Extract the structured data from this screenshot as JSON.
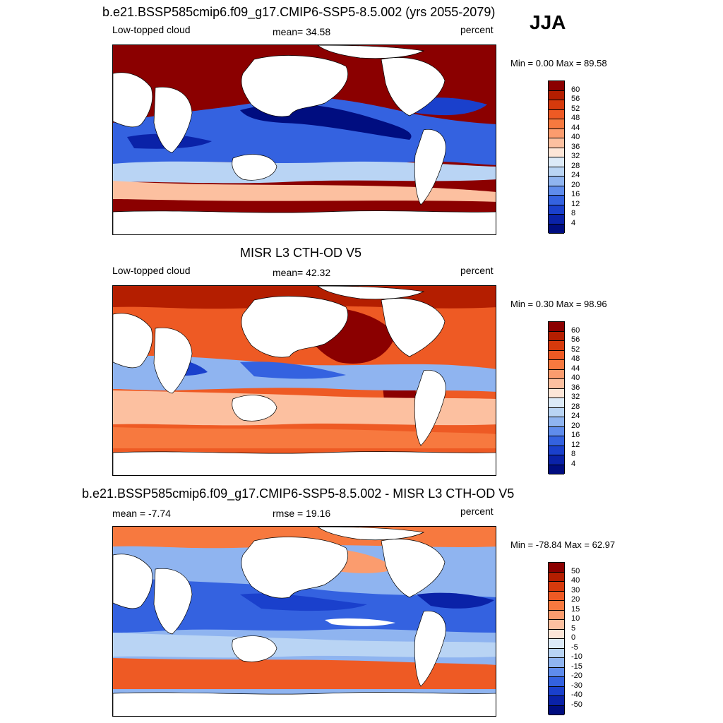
{
  "season": "JJA",
  "panels": [
    {
      "title": "b.e21.BSSP585cmip6.f09_g17.CMIP6-SSP5-8.5.002 (yrs 2055-2079)",
      "left_text": "Low-topped cloud",
      "center_text": "mean=  34.58",
      "right_text": "percent",
      "minmax": "Min =   0.00 Max =  89.58",
      "legend_labels": [
        "60",
        "56",
        "52",
        "48",
        "44",
        "40",
        "36",
        "32",
        "28",
        "24",
        "20",
        "16",
        "12",
        "8",
        "4"
      ],
      "legend_colors": [
        "#8b0000",
        "#b41e00",
        "#d63a0c",
        "#ee5a24",
        "#f7793f",
        "#fb9c6e",
        "#fcc0a0",
        "#fde6d8",
        "#dceaf8",
        "#b9d4f4",
        "#8fb4f0",
        "#5f8cec",
        "#3462e0",
        "#1a40cc",
        "#0a22a8",
        "#000d80"
      ]
    },
    {
      "title": "MISR L3 CTH-OD V5",
      "left_text": "Low-topped cloud",
      "center_text": "mean=  42.32",
      "right_text": "percent",
      "minmax": "Min =   0.30 Max =  98.96",
      "legend_labels": [
        "60",
        "56",
        "52",
        "48",
        "44",
        "40",
        "36",
        "32",
        "28",
        "24",
        "20",
        "16",
        "12",
        "8",
        "4"
      ],
      "legend_colors": [
        "#8b0000",
        "#b41e00",
        "#d63a0c",
        "#ee5a24",
        "#f7793f",
        "#fb9c6e",
        "#fcc0a0",
        "#fde6d8",
        "#dceaf8",
        "#b9d4f4",
        "#8fb4f0",
        "#5f8cec",
        "#3462e0",
        "#1a40cc",
        "#0a22a8",
        "#000d80"
      ]
    },
    {
      "title": "b.e21.BSSP585cmip6.f09_g17.CMIP6-SSP5-8.5.002 - MISR L3 CTH-OD V5",
      "left_text": "mean =  -7.74",
      "center_text": "rmse =  19.16",
      "right_text": "percent",
      "minmax": "Min = -78.84 Max =  62.97",
      "legend_labels": [
        "50",
        "40",
        "30",
        "20",
        "15",
        "10",
        "5",
        "0",
        "-5",
        "-10",
        "-15",
        "-20",
        "-30",
        "-40",
        "-50"
      ],
      "legend_colors": [
        "#8b0000",
        "#b41e00",
        "#d63a0c",
        "#ee5a24",
        "#f7793f",
        "#fb9c6e",
        "#fcc0a0",
        "#fde6d8",
        "#dceaf8",
        "#b9d4f4",
        "#8fb4f0",
        "#5f8cec",
        "#3462e0",
        "#1a40cc",
        "#0a22a8",
        "#000d80"
      ]
    }
  ]
}
